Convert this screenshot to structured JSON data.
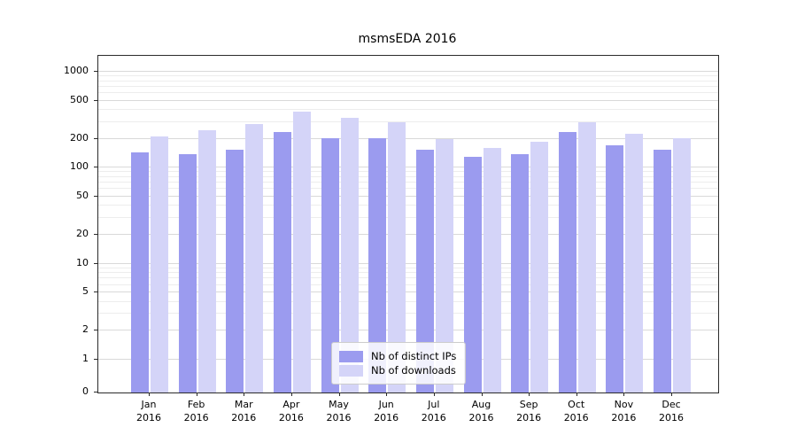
{
  "title": "msmsEDA 2016",
  "chart_data": {
    "type": "bar",
    "title": "msmsEDA 2016",
    "xlabel": "",
    "ylabel": "",
    "yscale": "symlog",
    "ylim": [
      0,
      1450
    ],
    "yticks": [
      0,
      1,
      2,
      5,
      10,
      20,
      50,
      100,
      200,
      500,
      1000
    ],
    "grid": true,
    "legend_position": "lower-center-inside",
    "categories": [
      "Jan",
      "Feb",
      "Mar",
      "Apr",
      "May",
      "Jun",
      "Jul",
      "Aug",
      "Sep",
      "Oct",
      "Nov",
      "Dec"
    ],
    "year_label": "2016",
    "series": [
      {
        "name": "Nb of distinct IPs",
        "color": "#9b9bef",
        "values": [
          145,
          140,
          155,
          235,
          205,
          205,
          155,
          130,
          140,
          235,
          170,
          155
        ]
      },
      {
        "name": "Nb of downloads",
        "color": "#d4d4f8",
        "values": [
          210,
          245,
          285,
          385,
          335,
          300,
          200,
          160,
          185,
          300,
          225,
          205
        ]
      }
    ]
  },
  "colors": {
    "background": "#ffffff",
    "grid_major": "#d9d9d9",
    "grid_minor": "#ededed",
    "axis": "#2b2b2b",
    "text": "#000000"
  }
}
